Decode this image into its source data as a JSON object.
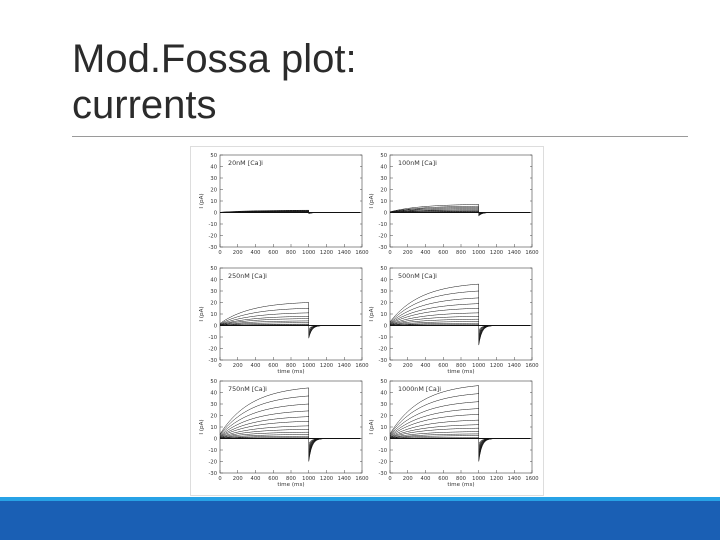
{
  "slide": {
    "title_line1": "Mod.Fossa plot:",
    "title_line2": "currents",
    "accent_color": "#1a5fb4"
  },
  "chart_data": [
    {
      "type": "line",
      "title": "20nM [Ca]i",
      "xlabel": "",
      "ylabel": "I (pA)",
      "xlim": [
        0,
        1600
      ],
      "ylim": [
        -30,
        50
      ],
      "x_ticks": [
        "0",
        "200",
        "400",
        "600",
        "800",
        "1000",
        "1200",
        "1400",
        "1600"
      ],
      "y_ticks": [
        "50",
        "40",
        "30",
        "20",
        "10",
        "0",
        "-10",
        "-20",
        "-30"
      ],
      "step_start_ms": 0,
      "step_end_ms": 1000,
      "final_currents_pA": [
        2,
        1.6,
        1.3,
        1.0,
        0.8,
        0.6,
        0.4,
        0.2
      ],
      "tail_pA": -1
    },
    {
      "type": "line",
      "title": "100nM [Ca]i",
      "xlabel": "",
      "ylabel": "I (pA)",
      "xlim": [
        0,
        1600
      ],
      "ylim": [
        -30,
        50
      ],
      "x_ticks": [
        "0",
        "200",
        "400",
        "600",
        "800",
        "1000",
        "1200",
        "1400",
        "1600"
      ],
      "y_ticks": [
        "50",
        "40",
        "30",
        "20",
        "10",
        "0",
        "-10",
        "-20",
        "-30"
      ],
      "step_start_ms": 0,
      "step_end_ms": 1000,
      "final_currents_pA": [
        7,
        5.5,
        4.5,
        3.5,
        2.5,
        1.8,
        1.2,
        0.6
      ],
      "tail_pA": -3
    },
    {
      "type": "line",
      "title": "250nM [Ca]i",
      "xlabel": "time (ms)",
      "ylabel": "I (pA)",
      "xlim": [
        0,
        1600
      ],
      "ylim": [
        -30,
        50
      ],
      "x_ticks": [
        "0",
        "200",
        "400",
        "600",
        "800",
        "1000",
        "1200",
        "1400",
        "1600"
      ],
      "y_ticks": [
        "50",
        "40",
        "30",
        "20",
        "10",
        "0",
        "-10",
        "-20",
        "-30"
      ],
      "step_start_ms": 0,
      "step_end_ms": 1000,
      "final_currents_pA": [
        20,
        15,
        11,
        8,
        6,
        4,
        2.5,
        1.2,
        0.5
      ],
      "tail_pA": -11
    },
    {
      "type": "line",
      "title": "500nM [Ca]i",
      "xlabel": "time (ms)",
      "ylabel": "I (pA)",
      "xlim": [
        0,
        1600
      ],
      "ylim": [
        -30,
        50
      ],
      "x_ticks": [
        "0",
        "200",
        "400",
        "600",
        "800",
        "1000",
        "1200",
        "1400",
        "1600"
      ],
      "y_ticks": [
        "50",
        "40",
        "30",
        "20",
        "10",
        "0",
        "-10",
        "-20",
        "-30"
      ],
      "step_start_ms": 0,
      "step_end_ms": 1000,
      "final_currents_pA": [
        36,
        30,
        24,
        19,
        15,
        11,
        8,
        5.5,
        3.5,
        2,
        1
      ],
      "tail_pA": -17
    },
    {
      "type": "line",
      "title": "750nM [Ca]i",
      "xlabel": "time (ms)",
      "ylabel": "I (pA)",
      "xlim": [
        0,
        1600
      ],
      "ylim": [
        -30,
        50
      ],
      "x_ticks": [
        "0",
        "200",
        "400",
        "600",
        "800",
        "1000",
        "1200",
        "1400",
        "1600"
      ],
      "y_ticks": [
        "50",
        "40",
        "30",
        "20",
        "10",
        "0",
        "-10",
        "-20",
        "-30"
      ],
      "step_start_ms": 0,
      "step_end_ms": 1000,
      "final_currents_pA": [
        44,
        37,
        30,
        24,
        19,
        15,
        11,
        8,
        5.5,
        3.5,
        2,
        1
      ],
      "tail_pA": -20
    },
    {
      "type": "line",
      "title": "1000nM [Ca]i",
      "xlabel": "time (ms)",
      "ylabel": "I (pA)",
      "xlim": [
        0,
        1600
      ],
      "ylim": [
        -30,
        50
      ],
      "x_ticks": [
        "0",
        "200",
        "400",
        "600",
        "800",
        "1000",
        "1200",
        "1400",
        "1600"
      ],
      "y_ticks": [
        "50",
        "40",
        "30",
        "20",
        "10",
        "0",
        "-10",
        "-20",
        "-30"
      ],
      "step_start_ms": 0,
      "step_end_ms": 1000,
      "final_currents_pA": [
        46,
        39,
        32,
        26,
        21,
        16,
        12,
        9,
        6,
        4,
        2.5,
        1
      ],
      "tail_pA": -20
    }
  ]
}
